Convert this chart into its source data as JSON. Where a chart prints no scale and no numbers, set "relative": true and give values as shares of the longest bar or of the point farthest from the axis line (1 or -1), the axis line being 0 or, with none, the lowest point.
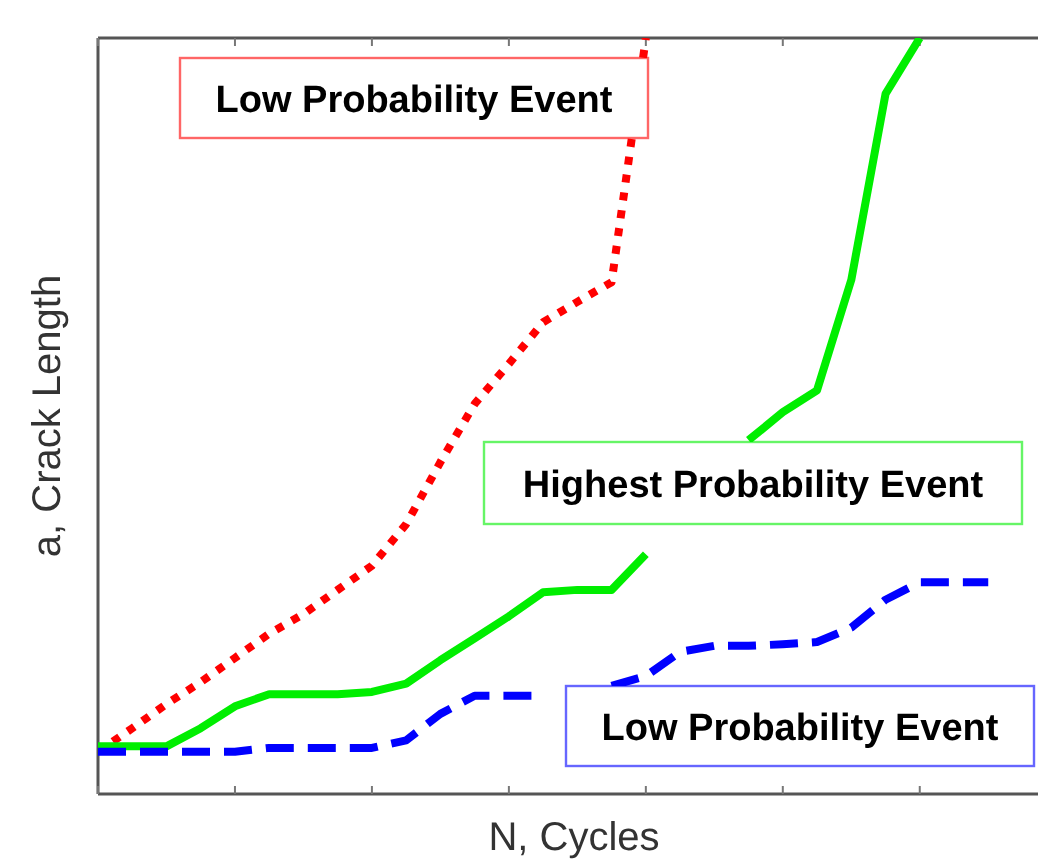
{
  "chart_data": {
    "type": "line",
    "xlabel": "N, Cycles",
    "ylabel": "a, Crack Length",
    "relative": true,
    "grid": false,
    "legend": false,
    "marker": "none",
    "categories": [
      null,
      null,
      null,
      null,
      null,
      null,
      null,
      null,
      null,
      null,
      null,
      null,
      null,
      null,
      null,
      null,
      null,
      null,
      null,
      null,
      null,
      null,
      null,
      null,
      null,
      null,
      null,
      null
    ],
    "series": [
      {
        "name": "Low Probability Event",
        "color": "#ff0000",
        "line_style": "dotted",
        "values": [
          0.056,
          0.087,
          0.119,
          0.148,
          0.18,
          0.212,
          0.238,
          0.27,
          0.302,
          0.357,
          0.439,
          0.516,
          0.569,
          0.624,
          0.651,
          0.677,
          1,
          null,
          null,
          null,
          null,
          null,
          null,
          null,
          null,
          null,
          null,
          null
        ]
      },
      {
        "name": "Highest Probability Event",
        "color": "#00ee00",
        "line_style": "solid",
        "values": [
          0.063,
          0.063,
          0.063,
          0.087,
          0.116,
          0.132,
          0.132,
          0.132,
          0.135,
          0.146,
          0.177,
          0.206,
          0.235,
          0.267,
          0.27,
          0.27,
          0.317,
          null,
          null,
          0.468,
          0.505,
          0.534,
          0.68,
          0.926,
          1,
          null,
          null,
          null
        ]
      },
      {
        "name": "Low Probability Event",
        "color": "#0000ff",
        "line_style": "dashed",
        "values": [
          0.056,
          0.056,
          0.056,
          0.056,
          0.056,
          0.061,
          0.061,
          0.061,
          0.061,
          0.071,
          0.106,
          0.13,
          0.13,
          0.13,
          null,
          0.143,
          0.156,
          0.188,
          0.196,
          0.196,
          0.198,
          0.201,
          0.22,
          0.257,
          0.28,
          0.28,
          0.28,
          null
        ]
      }
    ]
  }
}
